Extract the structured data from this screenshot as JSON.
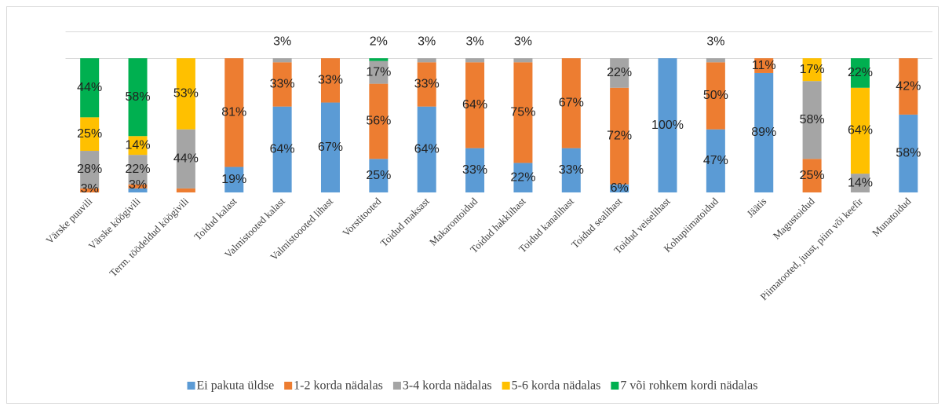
{
  "chart_data": {
    "type": "stacked_bar",
    "categories": [
      "Värske puuvili",
      "Värske köögivili",
      "Term. töödeldud köögivili",
      "Toidud kalast",
      "Valmistooted kalast",
      "Valmistoooted lihast",
      "Vorstitooted",
      "Toidud maksast",
      "Makarontoidud",
      "Toidud hakklihast",
      "Toidud kanalihast",
      "Toidud sealihast",
      "Toidud veiselihast",
      "Kohupiimatoidud",
      "Jäätis",
      "Magustoidud",
      "Piimatooted, juust, piim või keefir",
      "Munatoidud"
    ],
    "series": [
      {
        "name": "Ei pakuta üldse",
        "color": "#5b9bd5",
        "values": [
          0,
          3,
          0,
          19,
          64,
          67,
          25,
          64,
          33,
          22,
          33,
          6,
          100,
          47,
          89,
          0,
          0,
          58
        ],
        "value_labels": [
          null,
          null,
          null,
          "19%",
          "64%",
          "67%",
          "25%",
          "64%",
          "33%",
          "22%",
          "33%",
          "6%",
          "100%",
          "47%",
          "89%",
          null,
          null,
          "58%"
        ]
      },
      {
        "name": "1-2 korda nädalas",
        "color": "#ed7d31",
        "values": [
          3,
          3,
          3,
          81,
          33,
          33,
          56,
          33,
          64,
          75,
          67,
          72,
          0,
          50,
          11,
          25,
          0,
          42
        ],
        "value_labels": [
          "3%",
          "3%",
          null,
          "81%",
          "33%",
          "33%",
          "56%",
          "33%",
          "64%",
          "75%",
          "67%",
          "72%",
          null,
          "50%",
          "11%",
          "25%",
          null,
          "42%"
        ]
      },
      {
        "name": "3-4 korda nädalas",
        "color": "#a5a5a5",
        "values": [
          28,
          22,
          44,
          0,
          3,
          0,
          17,
          3,
          3,
          3,
          0,
          22,
          0,
          3,
          0,
          58,
          14,
          0
        ],
        "value_labels": [
          "28%",
          "22%",
          "44%",
          null,
          "3%",
          null,
          "17%",
          "3%",
          "3%",
          "3%",
          null,
          "22%",
          null,
          "3%",
          null,
          "58%",
          "14%",
          null
        ]
      },
      {
        "name": "5-6 korda nädalas",
        "color": "#ffc000",
        "values": [
          25,
          14,
          53,
          0,
          0,
          0,
          0,
          0,
          0,
          0,
          0,
          0,
          0,
          0,
          0,
          17,
          64,
          0
        ],
        "value_labels": [
          "25%",
          "14%",
          "53%",
          null,
          null,
          null,
          null,
          null,
          null,
          null,
          null,
          null,
          null,
          null,
          null,
          "17%",
          "64%",
          null
        ]
      },
      {
        "name": "7 või rohkem kordi nädalas",
        "color": "#00b050",
        "values": [
          44,
          58,
          0,
          0,
          0,
          0,
          2,
          0,
          0,
          0,
          0,
          0,
          0,
          0,
          0,
          0,
          22,
          0
        ],
        "value_labels": [
          "44%",
          "58%",
          null,
          null,
          null,
          null,
          "2%",
          null,
          null,
          null,
          null,
          null,
          null,
          null,
          null,
          null,
          "22%",
          null
        ]
      }
    ],
    "ylim": [
      0,
      120
    ],
    "yticks": [
      100,
      120
    ],
    "grid": true
  }
}
